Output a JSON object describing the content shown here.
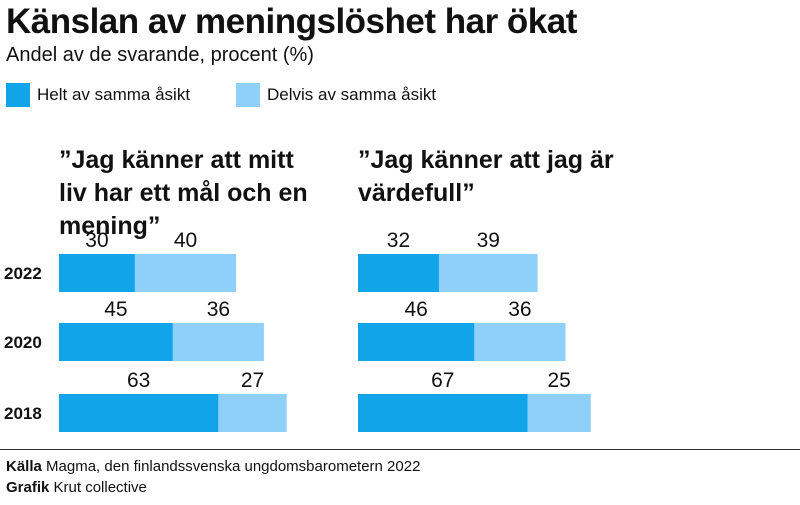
{
  "title": "Känslan av meningslöshet har ökat",
  "subtitle": "Andel av de svarande, procent (%)",
  "colors": {
    "helt": "#12a4e8",
    "delvis": "#8fd0fb"
  },
  "legend": [
    {
      "label": "Helt av samma åsikt",
      "color": "#12a4e8"
    },
    {
      "label": "Delvis av samma åsikt",
      "color": "#8fd0fb"
    }
  ],
  "chart_data": [
    {
      "type": "bar",
      "orientation": "horizontal",
      "stacked": true,
      "title": "”Jag känner att mitt liv har ett mål och en mening”",
      "categories": [
        "2022",
        "2020",
        "2018"
      ],
      "series": [
        {
          "name": "Helt av samma åsikt",
          "values": [
            30,
            45,
            63
          ]
        },
        {
          "name": "Delvis av samma åsikt",
          "values": [
            40,
            36,
            27
          ]
        }
      ]
    },
    {
      "type": "bar",
      "orientation": "horizontal",
      "stacked": true,
      "title": "”Jag känner att jag är värdefull”",
      "categories": [
        "2022",
        "2020",
        "2018"
      ],
      "series": [
        {
          "name": "Helt av samma åsikt",
          "values": [
            32,
            46,
            67
          ]
        },
        {
          "name": "Delvis av samma åsikt",
          "values": [
            39,
            36,
            25
          ]
        }
      ]
    }
  ],
  "footer": {
    "source_label": "Källa",
    "source_text": "Magma, den finlandssvenska ungdomsbarometern 2022",
    "credit_label": "Grafik",
    "credit_text": "Krut collective"
  }
}
